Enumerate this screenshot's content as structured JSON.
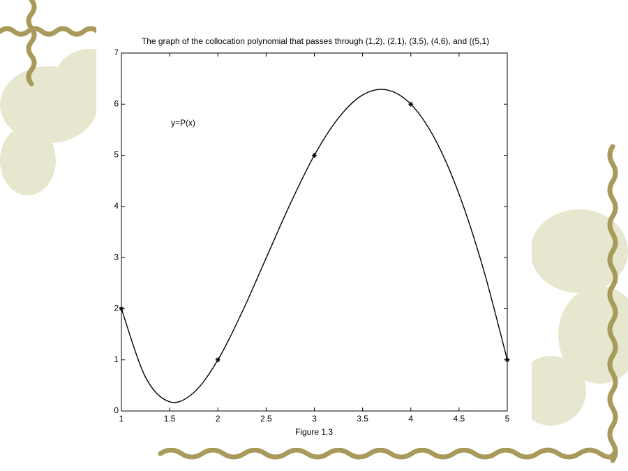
{
  "chart_data": {
    "type": "line",
    "title": "The graph of the collocation polynomial that passes through (1,2), (2,1), (3,5), (4,6), and ((5,1)",
    "annotation": "y=P(x)",
    "x_label": "Figure 1.3",
    "xlim": [
      1,
      5
    ],
    "ylim": [
      0,
      7
    ],
    "xticks": [
      1,
      1.5,
      2,
      2.5,
      3,
      3.5,
      4,
      4.5,
      5
    ],
    "yticks": [
      0,
      1,
      2,
      3,
      4,
      5,
      6,
      7
    ],
    "grid": false,
    "series": [
      {
        "color": "#000000",
        "marker": "none",
        "x": [
          1,
          1.25,
          1.5,
          1.75,
          2,
          2.25,
          2.5,
          2.75,
          3,
          3.25,
          3.5,
          3.75,
          4,
          4.25,
          4.5,
          4.75,
          5
        ],
        "values": [
          2,
          0.66,
          0.18,
          0.36,
          1,
          1.93,
          2.99,
          4.05,
          5,
          5.73,
          6.18,
          6.28,
          6,
          5.32,
          4.24,
          2.79,
          1
        ]
      },
      {
        "color": "#000000",
        "marker": "asterisk",
        "x": [
          1,
          2,
          3,
          4,
          5
        ],
        "values": [
          2,
          1,
          5,
          6,
          1
        ]
      }
    ]
  }
}
